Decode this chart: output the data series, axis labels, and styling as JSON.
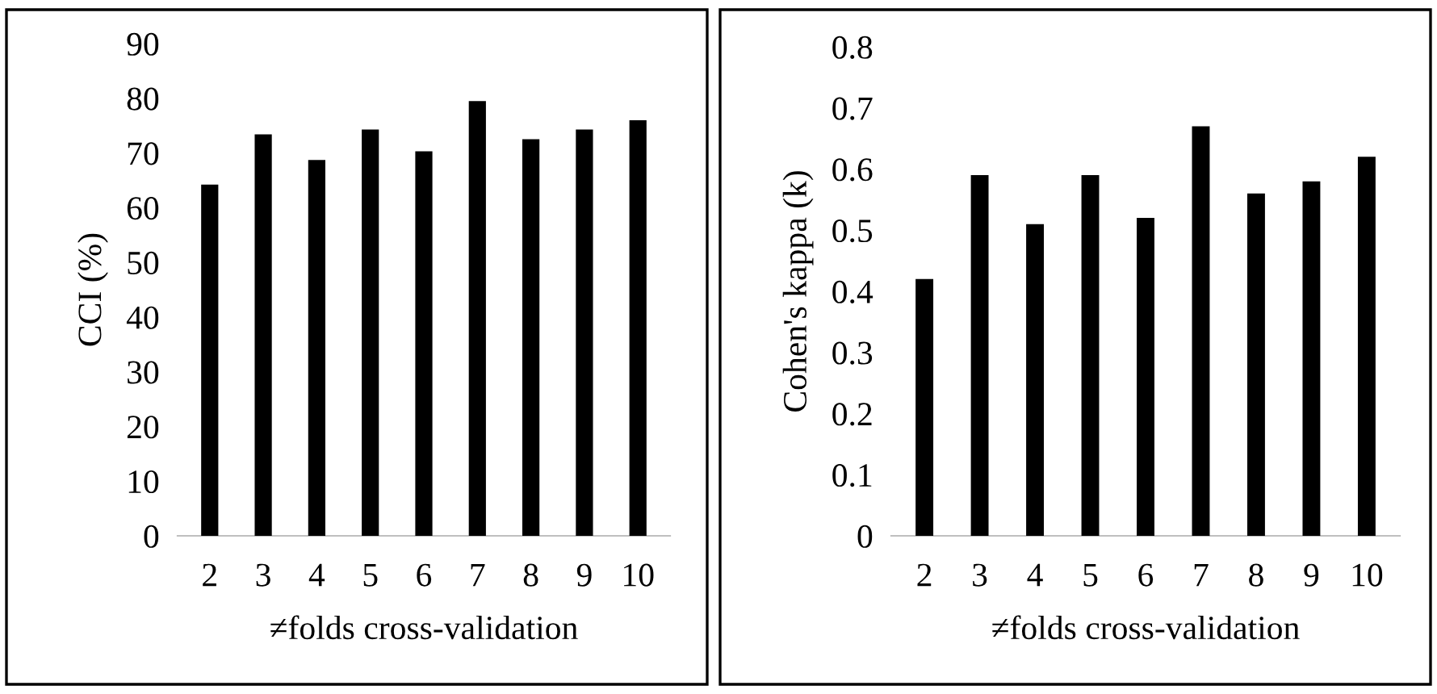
{
  "chart_data": [
    {
      "type": "bar",
      "categories": [
        "2",
        "3",
        "4",
        "5",
        "6",
        "7",
        "8",
        "9",
        "10"
      ],
      "values": [
        64.2,
        73.4,
        68.7,
        74.3,
        70.3,
        79.5,
        72.5,
        74.3,
        76.0
      ],
      "color": "#000000",
      "ylabel": "CCI (%)",
      "xlabel": "≠folds cross-validation",
      "ylim": [
        0,
        90
      ],
      "yticks": [
        0,
        10,
        20,
        30,
        40,
        50,
        60,
        70,
        80,
        90
      ],
      "grid": false,
      "legend": false
    },
    {
      "type": "bar",
      "categories": [
        "2",
        "3",
        "4",
        "5",
        "6",
        "7",
        "8",
        "9",
        "10"
      ],
      "values": [
        0.42,
        0.59,
        0.51,
        0.59,
        0.52,
        0.67,
        0.56,
        0.58,
        0.62
      ],
      "color": "#000000",
      "ylabel": "Cohen's kappa (k)",
      "xlabel": "≠folds cross-validation",
      "ylim": [
        0,
        0.8
      ],
      "yticks": [
        0,
        0.1,
        0.2,
        0.3,
        0.4,
        0.5,
        0.6,
        0.7,
        0.8
      ],
      "grid": false,
      "legend": false
    }
  ]
}
